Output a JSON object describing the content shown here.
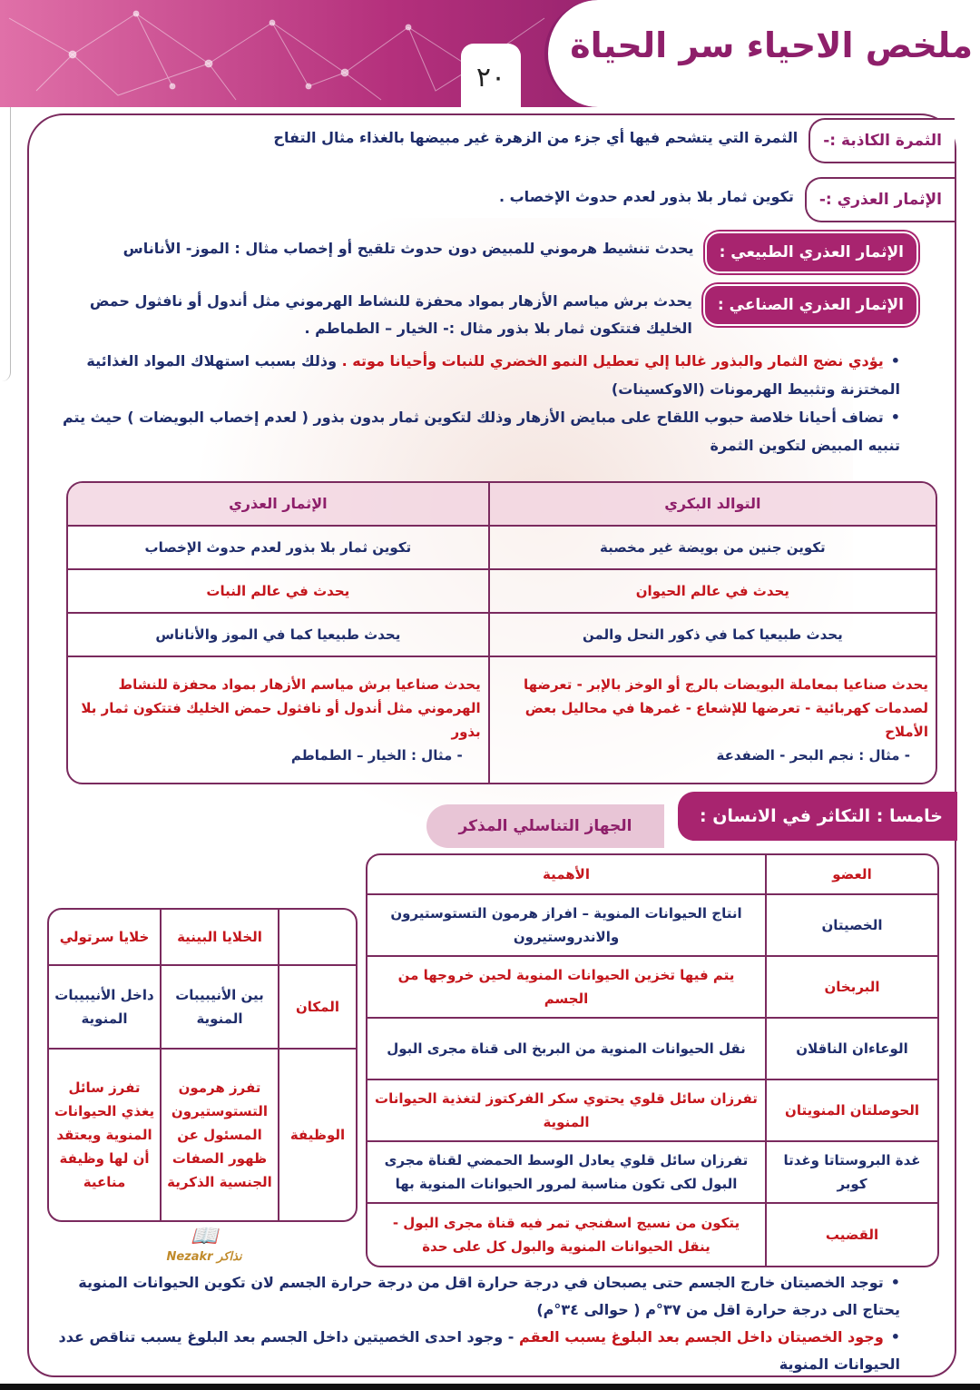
{
  "header": {
    "title": "ملخص الاحياء سر الحياة",
    "page_number": "٢٠"
  },
  "definitions": [
    {
      "term": "الثمرة الكاذبة :-",
      "text": "الثمرة التي يتشحم فيها أي جزء من الزهرة غير مبيضها بالغذاء مثال التفاح"
    },
    {
      "term": "الإثمار العذري :-",
      "text": "تكوين ثمار بلا بذور لعدم حدوث الإخصاب ."
    },
    {
      "term": "الإثمار العذري الطبيعي :",
      "text": "يحدث تنشيط هرموني للمبيض دون حدوث تلقيح أو إخصاب مثال : الموز- الأناناس"
    },
    {
      "term": "الإثمار العذري الصناعي :",
      "text": "يحدث برش مياسم الأزهار بمواد محفزة للنشاط الهرموني مثل أندول أو نافثول حمض الخليك فتتكون ثمار بلا بذور مثال :- الخيار – الطماطم ."
    }
  ],
  "bullets_top": [
    {
      "red": "يؤدي نضج الثمار والبذور غالبا إلي تعطيل النمو الخضري للنبات وأحيانا موته .",
      "blue": "وذلك بسبب استهلاك المواد الغذائية المختزنة وتثبيط الهرمونات (الاوكسينات)"
    },
    {
      "blue": "تضاف أحيانا خلاصة حبوب اللقاح على مبايض الأزهار وذلك لتكوين ثمار بدون بذور ( لعدم إخصاب البويضات ) حيث يتم تنبيه المبيض لتكوين الثمرة"
    }
  ],
  "comparison_table": {
    "headers": [
      "التوالد البكري",
      "الإثمار العذري"
    ],
    "rows": [
      [
        "تكوين جنين من بويضة غير مخصبة",
        "تكوين ثمار بلا بذور لعدم حدوث الإخصاب"
      ],
      [
        "يحدث في عالم الحيوان",
        "يحدث في عالم النبات"
      ],
      [
        "يحدث طبيعيا كما في ذكور النحل والمن",
        "يحدث طبيعيا كما في الموز والأناناس"
      ]
    ],
    "last_row": {
      "right": "يحدث صناعيا بمعاملة البويضات بالرج أو الوخز بالإبر - تعرضها لصدمات كهربائية - تعرضها للإشعاع - غمرها في محاليل بعض الأملاح",
      "right_example": "- مثال : نجم البحر - الضفدعة",
      "left": "يحدث صناعيا برش مياسم الأزهار بمواد محفزة للنشاط الهرموني مثل أندول أو نافثول حمض الخليك فتتكون ثمار بلا بذور",
      "left_example": "- مثال : الخيار – الطماطم"
    }
  },
  "section5": {
    "title": "خامسا : التكاثر في الانسان :",
    "subtitle": "الجهاز التناسلي المذكر"
  },
  "organs_table": {
    "headers": [
      "العضو",
      "الأهمية"
    ],
    "rows": [
      {
        "organ": "الخصيتان",
        "role": "انتاج الحيوانات المنوية – افراز هرمون التستوستيرون والاندروستيرون",
        "color": "blue"
      },
      {
        "organ": "البربخان",
        "role": "يتم فيها تخزين الحيوانات المنوية لحين خروجها من الجسم",
        "color": "red"
      },
      {
        "organ": "الوعاءان الناقلان",
        "role": "نقل الحيوانات المنوية من البربخ الى قناة مجرى البول",
        "color": "blue"
      },
      {
        "organ": "الحوصلتان المنويتان",
        "role": "تفرزان سائل قلوي يحتوي سكر الفركتوز لتغذية الحيوانات المنوية",
        "color": "red"
      },
      {
        "organ": "غدة البروستاتا وغدتا كوبر",
        "role": "تفرزان سائل قلوي يعادل الوسط الحمضي لقناة مجرى البول لكى تكون مناسبة لمرور الحيوانات المنوية بها",
        "color": "blue"
      },
      {
        "organ": "القضيب",
        "role": "يتكون من نسيج اسفنجي تمر فيه قناة مجرى البول - ينقل الحيوانات المنوية والبول كل على حدة",
        "color": "red"
      }
    ]
  },
  "cells_table": {
    "headers": [
      "",
      "الخلايا البينية",
      "خلايا سرتولي"
    ],
    "place": {
      "label": "المكان",
      "interstitial": "بين الأنيبيبات المنوية",
      "sertoli": "داخل الأنيبيبات المنوية"
    },
    "function": {
      "label": "الوظيفة",
      "interstitial": "تفرز هرمون التستوستيرون المسئول عن ظهور الصفات الجنسية الذكرية",
      "sertoli": "تفرز سائل يغذي الحيوانات المنوية ويعتقد أن لها وظيفة مناعية"
    }
  },
  "bullets_bottom": [
    {
      "blue": "توجد الخصيتان خارج الجسم حتى يصبحان في درجة حرارة اقل من درجة حرارة الجسم لان تكوين الحيوانات المنوية يحتاج الى درجة حرارة اقل من ٣٧°م ( حوالى ٣٤°م)"
    },
    {
      "red": "وجود الخصيتان داخل الجسم بعد البلوغ يسبب العقم",
      "blue": "- وجود احدى الخصيتين داخل الجسم بعد البلوغ يسبب تناقص عدد الحيوانات المنوية"
    }
  ],
  "watermark": "Nezakr نذاكر",
  "colors": {
    "accent": "#a8246f",
    "border": "#7a2a5e",
    "text_blue": "#1f2d6b",
    "text_red": "#c4161c"
  }
}
